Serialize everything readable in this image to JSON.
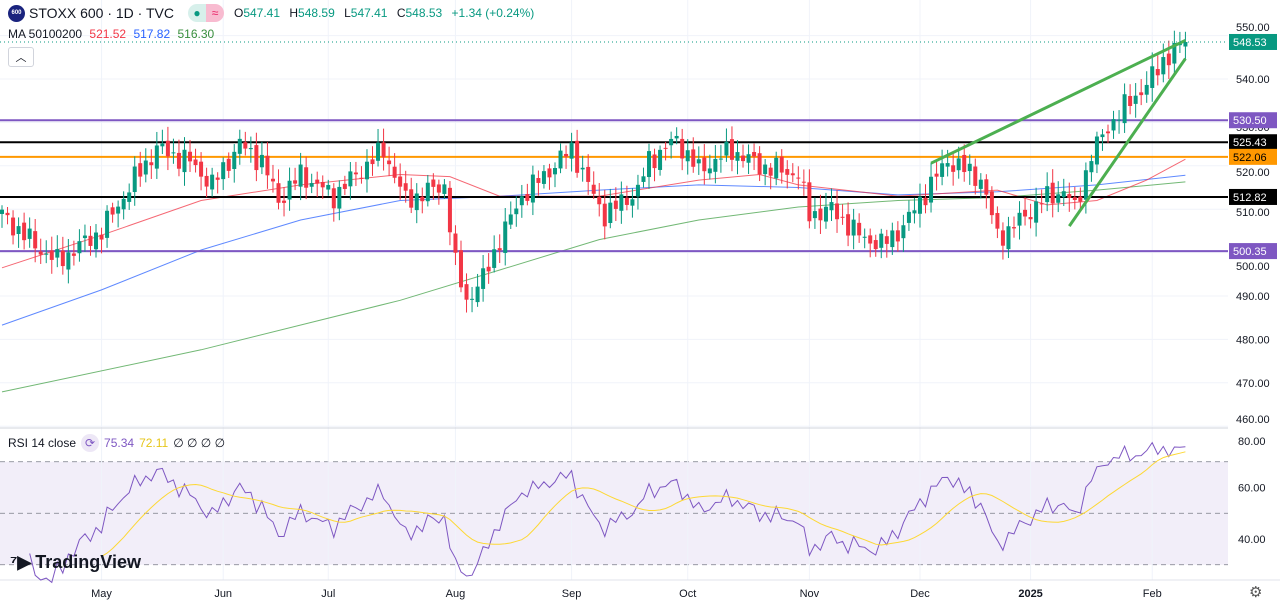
{
  "header": {
    "logo_text": "600",
    "title": "STOXX 600 · 1D · TVC",
    "status_icon": "market-open-dot",
    "extra_icon": "approx-icon",
    "open_label": "O",
    "open": "547.41",
    "high_label": "H",
    "high": "548.59",
    "low_label": "L",
    "low": "547.41",
    "close_label": "C",
    "close": "548.53",
    "change": "+1.34 (+0.24%)"
  },
  "ma": {
    "label": "MA 50100200",
    "v50": "521.52",
    "v100": "517.82",
    "v200": "516.30"
  },
  "rsi": {
    "label": "RSI 14 close",
    "value": "75.34",
    "ma_value": "72.11",
    "empty": "∅ ∅ ∅ ∅"
  },
  "brand": "TradingView",
  "colors": {
    "up": "#089981",
    "down": "#f23645",
    "ma50": "#f23645",
    "ma100": "#2962ff",
    "ma200": "#43a047",
    "rsi": "#7e57c2",
    "rsi_ma": "#fdd835",
    "trend": "#4caf50"
  },
  "chart_data": {
    "type": "candlestick",
    "title": "STOXX 600 · 1D · TVC",
    "price_ticks": [
      "550.00",
      "540.00",
      "530.00",
      "520.00",
      "510.00",
      "500.00",
      "490.00",
      "480.00",
      "470.00",
      "460.00"
    ],
    "ylim": [
      460,
      550
    ],
    "x_ticks": [
      {
        "label": "May",
        "idx": 18
      },
      {
        "label": "Jun",
        "idx": 40
      },
      {
        "label": "Jul",
        "idx": 59
      },
      {
        "label": "Aug",
        "idx": 82
      },
      {
        "label": "Sep",
        "idx": 103
      },
      {
        "label": "Oct",
        "idx": 124
      },
      {
        "label": "Nov",
        "idx": 146
      },
      {
        "label": "Dec",
        "idx": 166
      },
      {
        "label": "2025",
        "idx": 186
      },
      {
        "label": "Feb",
        "idx": 208
      }
    ],
    "n_bars": 215,
    "close_keypoints": [
      [
        0,
        508.7
      ],
      [
        7,
        500.6
      ],
      [
        10,
        498
      ],
      [
        18,
        505
      ],
      [
        22,
        513
      ],
      [
        24,
        517
      ],
      [
        28,
        524
      ],
      [
        34,
        521
      ],
      [
        38,
        515.6
      ],
      [
        43,
        525
      ],
      [
        47,
        521
      ],
      [
        50,
        512
      ],
      [
        54,
        518
      ],
      [
        60,
        513
      ],
      [
        64,
        518
      ],
      [
        69,
        523.6
      ],
      [
        73,
        512
      ],
      [
        80,
        515.6
      ],
      [
        82,
        497
      ],
      [
        84,
        489
      ],
      [
        87,
        494
      ],
      [
        90,
        503
      ],
      [
        94,
        513
      ],
      [
        99,
        519
      ],
      [
        103,
        524
      ],
      [
        107,
        513
      ],
      [
        109,
        508.7
      ],
      [
        115,
        514.4
      ],
      [
        117,
        521.3
      ],
      [
        122,
        526
      ],
      [
        126,
        519
      ],
      [
        132,
        523.6
      ],
      [
        137,
        520
      ],
      [
        144,
        518
      ],
      [
        146,
        508.7
      ],
      [
        150,
        510
      ],
      [
        155,
        504
      ],
      [
        159,
        501.8
      ],
      [
        163,
        506
      ],
      [
        166,
        512
      ],
      [
        171,
        521.3
      ],
      [
        177,
        517
      ],
      [
        180,
        504
      ],
      [
        182,
        505
      ],
      [
        188,
        512
      ],
      [
        192,
        514.4
      ],
      [
        194,
        510
      ],
      [
        197,
        522.5
      ],
      [
        200,
        529
      ],
      [
        204,
        535
      ],
      [
        207,
        538.6
      ],
      [
        210,
        544.4
      ],
      [
        214,
        548.53
      ]
    ],
    "ma50": [
      [
        0,
        496.5
      ],
      [
        18,
        504
      ],
      [
        36,
        512
      ],
      [
        54,
        515.6
      ],
      [
        72,
        518
      ],
      [
        81,
        517.5
      ],
      [
        90,
        513
      ],
      [
        108,
        513
      ],
      [
        126,
        516.7
      ],
      [
        137,
        518
      ],
      [
        144,
        515.6
      ],
      [
        162,
        513
      ],
      [
        180,
        514.4
      ],
      [
        189,
        511
      ],
      [
        198,
        512
      ],
      [
        207,
        516.7
      ],
      [
        214,
        521.52
      ]
    ],
    "ma100": [
      [
        0,
        483.3
      ],
      [
        18,
        491.4
      ],
      [
        36,
        500.6
      ],
      [
        54,
        507.5
      ],
      [
        72,
        512
      ],
      [
        90,
        513
      ],
      [
        108,
        514.4
      ],
      [
        126,
        515.6
      ],
      [
        144,
        515
      ],
      [
        162,
        513.3
      ],
      [
        180,
        514
      ],
      [
        198,
        515.6
      ],
      [
        214,
        517.82
      ]
    ],
    "ma200": [
      [
        0,
        467.9
      ],
      [
        36,
        477.6
      ],
      [
        72,
        489
      ],
      [
        90,
        496
      ],
      [
        108,
        503
      ],
      [
        126,
        507.5
      ],
      [
        144,
        510.5
      ],
      [
        162,
        512
      ],
      [
        180,
        512.7
      ],
      [
        198,
        514.4
      ],
      [
        214,
        516.3
      ]
    ],
    "levels": [
      {
        "value": 530.5,
        "label": "530.50",
        "color": "#7e57c2"
      },
      {
        "value": 525.43,
        "label": "525.43",
        "color": "#000000"
      },
      {
        "value": 522.06,
        "label": "522.06",
        "color": "#ff9800"
      },
      {
        "value": 512.82,
        "label": "512.82",
        "color": "#000000"
      },
      {
        "value": 500.35,
        "label": "500.35",
        "color": "#7e57c2"
      }
    ],
    "trendlines": [
      [
        [
          168,
          520.6
        ],
        [
          214,
          548.9
        ]
      ],
      [
        [
          193,
          506.1
        ],
        [
          214,
          544.7
        ]
      ]
    ],
    "last_price": {
      "value": 548.53,
      "label": "548.53"
    },
    "rsi_ticks": [
      "80.00",
      "60.00",
      "40.00"
    ],
    "rsi_band": [
      30,
      70
    ],
    "rsi_ylim": [
      28,
      82
    ]
  }
}
